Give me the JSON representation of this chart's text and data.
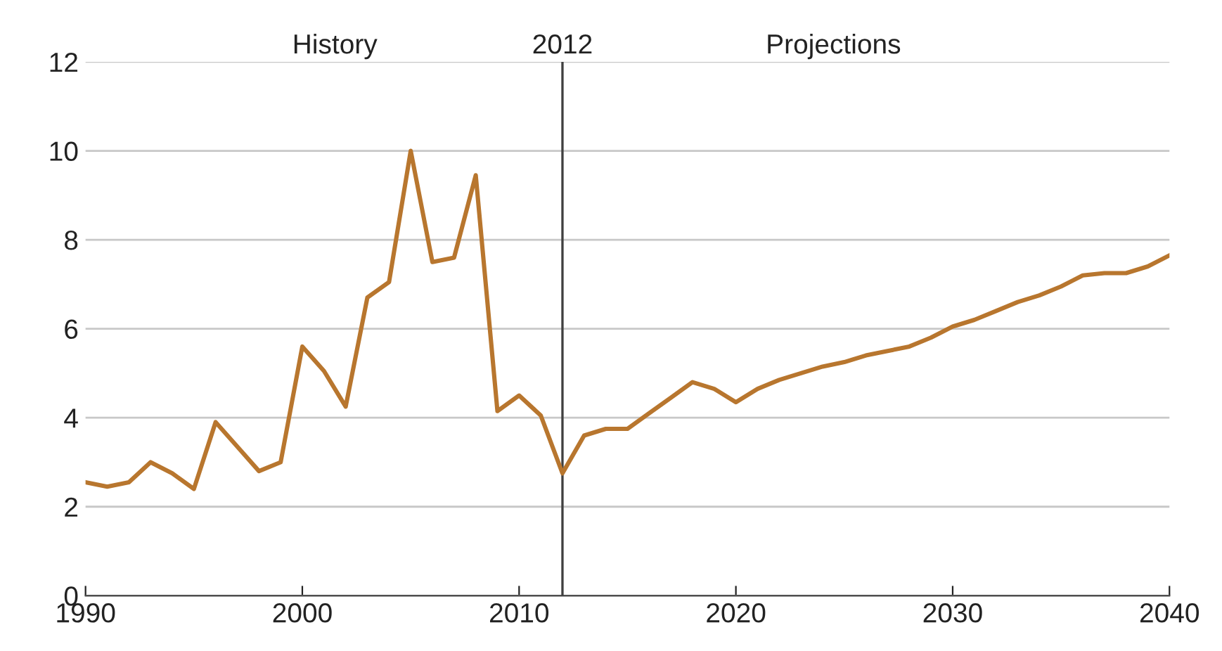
{
  "chart_data": {
    "type": "line",
    "x": [
      1990,
      1991,
      1992,
      1993,
      1994,
      1995,
      1996,
      1997,
      1998,
      1999,
      2000,
      2001,
      2002,
      2003,
      2004,
      2005,
      2006,
      2007,
      2008,
      2009,
      2010,
      2011,
      2012,
      2013,
      2014,
      2015,
      2016,
      2017,
      2018,
      2019,
      2020,
      2021,
      2022,
      2023,
      2024,
      2025,
      2026,
      2027,
      2028,
      2029,
      2030,
      2031,
      2032,
      2033,
      2034,
      2035,
      2036,
      2037,
      2038,
      2039,
      2040
    ],
    "series": [
      {
        "color": "#b8762e",
        "values": [
          2.55,
          2.45,
          2.55,
          3.0,
          2.75,
          2.4,
          3.9,
          3.35,
          2.8,
          3.0,
          5.6,
          5.05,
          4.25,
          6.7,
          7.05,
          10.0,
          7.5,
          7.6,
          9.45,
          4.15,
          4.5,
          4.05,
          2.75,
          3.6,
          3.75,
          3.75,
          4.1,
          4.45,
          4.8,
          4.65,
          4.35,
          4.65,
          4.85,
          5.0,
          5.15,
          5.25,
          5.4,
          5.5,
          5.6,
          5.8,
          6.05,
          6.2,
          6.4,
          6.6,
          6.75,
          6.95,
          7.2,
          7.25,
          7.25,
          7.4,
          7.65
        ]
      }
    ],
    "xlim": [
      1990,
      2040
    ],
    "xticks": [
      1990,
      2000,
      2010,
      2020,
      2030,
      2040
    ],
    "ylim": [
      0,
      12
    ],
    "yticks": [
      0,
      2,
      4,
      6,
      8,
      10,
      12
    ],
    "grid": "y",
    "marker": "none",
    "line_style": "solid",
    "ref_lines": [
      {
        "axis": "x",
        "value": 2012,
        "label": "2012",
        "color": "#404040"
      }
    ],
    "annotations": [
      "History",
      "Projections"
    ]
  }
}
